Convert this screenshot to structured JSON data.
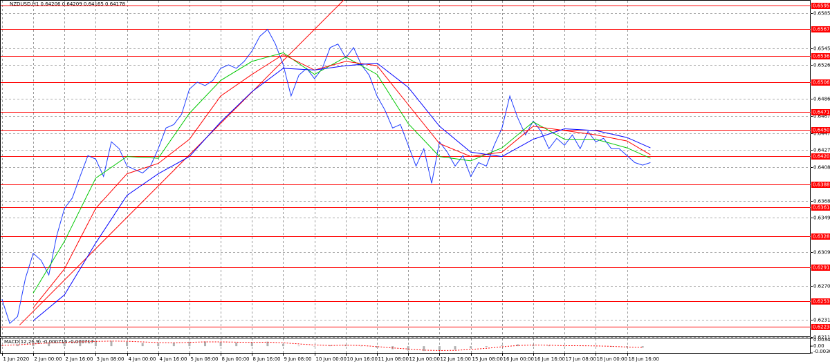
{
  "chart_data": [
    {
      "type": "line",
      "title": "NZDUSD,H1  0.64206 0.64209 0.64165 0.64178",
      "xlim": [
        -1,
        414
      ],
      "xticks": [
        {
          "value": 0,
          "label": "1 Jun 2020"
        },
        {
          "value": 16,
          "label": "2 Jun 00:00"
        },
        {
          "value": 32,
          "label": "2 Jun 16:00"
        },
        {
          "value": 48,
          "label": "3 Jun 08:00"
        },
        {
          "value": 64,
          "label": "4 Jun 00:00"
        },
        {
          "value": 80,
          "label": "4 Jun 16:00"
        },
        {
          "value": 96,
          "label": "5 Jun 08:00"
        },
        {
          "value": 112,
          "label": "8 Jun 00:00"
        },
        {
          "value": 128,
          "label": "8 Jun 16:00"
        },
        {
          "value": 144,
          "label": "9 Jun 08:00"
        },
        {
          "value": 160,
          "label": "10 Jun 00:00"
        },
        {
          "value": 176,
          "label": "10 Jun 16:00"
        },
        {
          "value": 192,
          "label": "11 Jun 08:00"
        },
        {
          "value": 208,
          "label": "12 Jun 00:00"
        },
        {
          "value": 224,
          "label": "12 Jun 16:00"
        },
        {
          "value": 240,
          "label": "15 Jun 08:00"
        },
        {
          "value": 256,
          "label": "16 Jun 00:00"
        },
        {
          "value": 272,
          "label": "16 Jun 16:00"
        },
        {
          "value": 288,
          "label": "17 Jun 08:00"
        },
        {
          "value": 304,
          "label": "18 Jun 00:00"
        },
        {
          "value": 320,
          "label": "18 Jun 16:00"
        }
      ],
      "ylim": [
        0.6212,
        0.6601
      ],
      "yticks": [
        {
          "value": 0.65855,
          "label": "0.65855"
        },
        {
          "value": 0.6545,
          "label": "0.65450"
        },
        {
          "value": 0.6526,
          "label": "0.65260"
        },
        {
          "value": 0.64865,
          "label": "0.64865"
        },
        {
          "value": 0.6467,
          "label": "0.64670"
        },
        {
          "value": 0.6447,
          "label": "0.64470"
        },
        {
          "value": 0.64275,
          "label": "0.64275"
        },
        {
          "value": 0.6408,
          "label": "0.64080"
        },
        {
          "value": 0.63685,
          "label": "0.63685"
        },
        {
          "value": 0.6349,
          "label": "0.63490"
        },
        {
          "value": 0.63095,
          "label": "0.63095"
        },
        {
          "value": 0.627,
          "label": "0.62700"
        },
        {
          "value": 0.6231,
          "label": "0.62310"
        },
        {
          "value": 0.62115,
          "label": "0.62115"
        }
      ],
      "grid": true,
      "levels": [
        {
          "value": 0.6595,
          "label": "0.65950"
        },
        {
          "value": 0.65677,
          "label": "0.65677"
        },
        {
          "value": 0.65364,
          "label": "0.65364"
        },
        {
          "value": 0.65061,
          "label": "0.65061"
        },
        {
          "value": 0.64718,
          "label": "0.64718"
        },
        {
          "value": 0.64509,
          "label": "0.64509"
        },
        {
          "value": 0.64202,
          "label": "0.64202"
        },
        {
          "value": 0.6388,
          "label": "0.63880"
        },
        {
          "value": 0.63614,
          "label": "0.63614"
        },
        {
          "value": 0.6328,
          "label": "0.63280"
        },
        {
          "value": 0.62919,
          "label": "0.62919"
        },
        {
          "value": 0.62531,
          "label": "0.62531"
        },
        {
          "value": 0.62234,
          "label": "0.62234"
        }
      ],
      "level_color": "#ff0000",
      "trendline": {
        "x": [
          9,
          175
        ],
        "values": [
          0.6225,
          0.6601
        ],
        "color": "#ff0000"
      },
      "series": [
        {
          "color": "#1e3cff",
          "x": [
            0,
            4,
            8,
            12,
            16,
            20,
            24,
            28,
            32,
            36,
            40,
            44,
            48,
            52,
            56,
            60,
            64,
            68,
            72,
            76,
            80,
            84,
            88,
            92,
            96,
            100,
            104,
            108,
            112,
            116,
            120,
            124,
            128,
            132,
            136,
            140,
            144,
            148,
            152,
            156,
            160,
            164,
            168,
            172,
            176,
            180,
            184,
            188,
            192,
            196,
            200,
            204,
            208,
            212,
            216,
            220,
            224,
            228,
            232,
            236,
            240,
            244,
            248,
            252,
            256,
            260,
            264,
            268,
            272,
            276,
            280,
            284,
            288,
            292,
            296,
            300,
            304,
            308,
            312,
            316,
            320,
            324,
            328,
            332
          ],
          "values": [
            0.6255,
            0.6227,
            0.6235,
            0.6279,
            0.6308,
            0.63,
            0.6283,
            0.6328,
            0.636,
            0.6372,
            0.6397,
            0.6421,
            0.6417,
            0.6397,
            0.6437,
            0.6429,
            0.6409,
            0.6405,
            0.6401,
            0.6409,
            0.6429,
            0.6453,
            0.6457,
            0.6469,
            0.6498,
            0.6506,
            0.6502,
            0.6508,
            0.6522,
            0.6526,
            0.6522,
            0.653,
            0.6542,
            0.6559,
            0.6567,
            0.655,
            0.6526,
            0.649,
            0.6514,
            0.6522,
            0.651,
            0.6522,
            0.6546,
            0.655,
            0.6534,
            0.6546,
            0.6526,
            0.6514,
            0.649,
            0.6474,
            0.6453,
            0.6457,
            0.6433,
            0.6409,
            0.6429,
            0.6389,
            0.6437,
            0.6425,
            0.6409,
            0.6421,
            0.6397,
            0.6413,
            0.6409,
            0.6433,
            0.6453,
            0.649,
            0.6465,
            0.6445,
            0.6461,
            0.6449,
            0.6429,
            0.6441,
            0.6433,
            0.6445,
            0.6429,
            0.6449,
            0.6437,
            0.6441,
            0.6429,
            0.6429,
            0.6421,
            0.6413,
            0.641,
            0.6413
          ]
        },
        {
          "color": "#00c800",
          "x": [
            16,
            32,
            48,
            64,
            80,
            96,
            112,
            128,
            144,
            160,
            176,
            192,
            208,
            224,
            240,
            256,
            272,
            288,
            304,
            320,
            332
          ],
          "values": [
            0.6262,
            0.6322,
            0.6395,
            0.642,
            0.6418,
            0.647,
            0.6508,
            0.653,
            0.654,
            0.6515,
            0.6535,
            0.6515,
            0.6458,
            0.642,
            0.6415,
            0.643,
            0.646,
            0.644,
            0.644,
            0.643,
            0.6418
          ]
        },
        {
          "color": "#ff0000",
          "x": [
            16,
            32,
            48,
            64,
            80,
            96,
            112,
            128,
            144,
            160,
            176,
            192,
            208,
            224,
            240,
            256,
            272,
            288,
            304,
            320,
            332
          ],
          "values": [
            0.6245,
            0.629,
            0.636,
            0.64,
            0.6412,
            0.644,
            0.649,
            0.6515,
            0.6538,
            0.652,
            0.653,
            0.6525,
            0.648,
            0.6435,
            0.642,
            0.6425,
            0.6455,
            0.645,
            0.6445,
            0.6438,
            0.6422
          ]
        },
        {
          "color": "#0000ff",
          "x": [
            16,
            32,
            48,
            64,
            80,
            96,
            112,
            128,
            144,
            160,
            176,
            192,
            208,
            224,
            240,
            256,
            272,
            288,
            304,
            320,
            332
          ],
          "values": [
            0.623,
            0.626,
            0.632,
            0.6375,
            0.64,
            0.642,
            0.646,
            0.6495,
            0.6522,
            0.652,
            0.6525,
            0.6528,
            0.65,
            0.6455,
            0.6425,
            0.642,
            0.644,
            0.6452,
            0.645,
            0.6442,
            0.643
          ]
        }
      ]
    },
    {
      "type": "bar",
      "title": "MACD(12,26,9) -0.000716 -0.000717",
      "ylim": [
        -0.00309,
        0.003473
      ],
      "yticks": [
        0.003473,
        {
          "value": 0,
          "label": "0.00"
        },
        -0.00309
      ],
      "x": [
        0,
        8,
        16,
        24,
        32,
        40,
        48,
        56,
        64,
        72,
        80,
        88,
        96,
        104,
        112,
        120,
        128,
        136,
        144,
        152,
        160,
        168,
        176,
        184,
        192,
        200,
        208,
        216,
        224,
        232,
        240,
        248,
        256,
        264,
        272,
        280,
        288,
        296,
        304,
        312,
        320,
        328
      ],
      "series": [
        {
          "type": "bar",
          "color": "#b0b0b0",
          "values": [
            0.0005,
            0.0008,
            0.0015,
            0.0018,
            0.002,
            0.0022,
            0.0025,
            0.0024,
            0.002,
            0.0014,
            0.0012,
            0.0016,
            0.002,
            0.0021,
            0.0019,
            0.0016,
            0.0018,
            0.002,
            0.001,
            0.0002,
            -0.0002,
            0.0004,
            0.0006,
            0.0001,
            -0.0008,
            -0.0014,
            -0.002,
            -0.0022,
            -0.002,
            -0.0016,
            -0.001,
            -0.0004,
            0.0004,
            0.0008,
            0.0006,
            0.0003,
            0.0001,
            0.0002,
            0.0001,
            -0.0003,
            -0.0006,
            -0.0007
          ]
        },
        {
          "type": "line",
          "color": "#ff0000",
          "dashed": true,
          "values": [
            0.0003,
            0.0006,
            0.001,
            0.0014,
            0.0017,
            0.0019,
            0.0021,
            0.0023,
            0.0022,
            0.0019,
            0.0016,
            0.0015,
            0.0017,
            0.0019,
            0.0019,
            0.0018,
            0.0017,
            0.0018,
            0.0015,
            0.001,
            0.0005,
            0.0003,
            0.0004,
            0.0003,
            -0.0002,
            -0.0008,
            -0.0013,
            -0.0018,
            -0.002,
            -0.0019,
            -0.0015,
            -0.001,
            -0.0003,
            0.0003,
            0.0005,
            0.0004,
            0.0002,
            0.0002,
            0.0001,
            -0.0001,
            -0.0004,
            -0.0006
          ]
        }
      ]
    }
  ]
}
